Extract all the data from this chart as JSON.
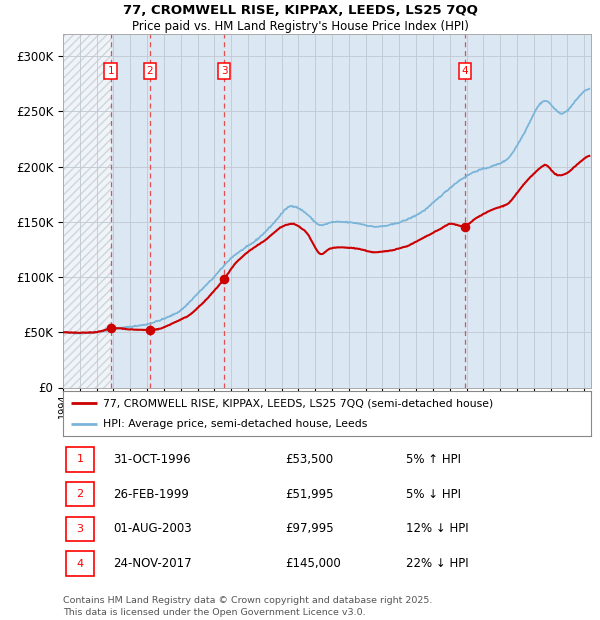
{
  "title1": "77, CROMWELL RISE, KIPPAX, LEEDS, LS25 7QQ",
  "title2": "Price paid vs. HM Land Registry's House Price Index (HPI)",
  "ylim": [
    0,
    320000
  ],
  "yticks": [
    0,
    50000,
    100000,
    150000,
    200000,
    250000,
    300000
  ],
  "hpi_color": "#7ab4d8",
  "price_color": "#cc0000",
  "bg_color": "#dbe8f4",
  "grid_color": "#c0c8d0",
  "dashed_color": "#e05050",
  "transaction_years": [
    1996.833,
    1999.167,
    2003.583,
    2017.9
  ],
  "transaction_prices": [
    53500,
    51995,
    97995,
    145000
  ],
  "transaction_labels": [
    "1",
    "2",
    "3",
    "4"
  ],
  "table_entries": [
    {
      "label": "1",
      "date": "31-OCT-1996",
      "price": "£53,500",
      "pct": "5% ↑ HPI"
    },
    {
      "label": "2",
      "date": "26-FEB-1999",
      "price": "£51,995",
      "pct": "5% ↓ HPI"
    },
    {
      "label": "3",
      "date": "01-AUG-2003",
      "price": "£97,995",
      "pct": "12% ↓ HPI"
    },
    {
      "label": "4",
      "date": "24-NOV-2017",
      "price": "£145,000",
      "pct": "22% ↓ HPI"
    }
  ],
  "footer": "Contains HM Land Registry data © Crown copyright and database right 2025.\nThis data is licensed under the Open Government Licence v3.0.",
  "legend_line1": "77, CROMWELL RISE, KIPPAX, LEEDS, LS25 7QQ (semi-detached house)",
  "legend_line2": "HPI: Average price, semi-detached house, Leeds",
  "hpi_keypoints_x": [
    1994.0,
    1995.0,
    1996.0,
    1997.0,
    1998.0,
    1999.0,
    2000.0,
    2001.0,
    2002.0,
    2003.0,
    2004.0,
    2005.5,
    2006.5,
    2007.5,
    2008.5,
    2009.3,
    2009.8,
    2010.5,
    2011.5,
    2012.5,
    2013.5,
    2014.5,
    2015.5,
    2016.5,
    2017.5,
    2018.5,
    2019.5,
    2020.5,
    2021.5,
    2022.3,
    2022.8,
    2023.3,
    2023.8,
    2024.3,
    2024.8,
    2025.2
  ],
  "hpi_keypoints_y": [
    50000,
    49000,
    50000,
    53000,
    55000,
    57000,
    62000,
    69000,
    85000,
    100000,
    118000,
    133000,
    148000,
    167000,
    158000,
    144000,
    150000,
    150000,
    149000,
    145000,
    147000,
    152000,
    160000,
    174000,
    187000,
    196000,
    200000,
    206000,
    232000,
    258000,
    263000,
    249000,
    246000,
    256000,
    266000,
    272000
  ],
  "price_keypoints_x": [
    1994.0,
    1995.0,
    1996.0,
    1996.833,
    1997.2,
    1998.0,
    1999.167,
    1999.8,
    2000.5,
    2001.5,
    2002.5,
    2003.583,
    2004.2,
    2005.0,
    2006.0,
    2007.0,
    2007.7,
    2008.5,
    2009.3,
    2009.8,
    2010.5,
    2011.5,
    2012.5,
    2013.5,
    2014.5,
    2015.5,
    2016.5,
    2017.0,
    2017.9,
    2018.5,
    2019.5,
    2020.5,
    2021.5,
    2022.3,
    2022.8,
    2023.0,
    2023.5,
    2024.0,
    2024.5,
    2025.2
  ],
  "price_keypoints_y": [
    50000,
    49500,
    50000,
    53500,
    54000,
    52500,
    51995,
    53000,
    58000,
    65000,
    79000,
    97995,
    112000,
    123000,
    133000,
    146000,
    149000,
    141000,
    118000,
    126000,
    127000,
    126000,
    122000,
    124000,
    128000,
    136000,
    144000,
    149000,
    145000,
    153000,
    161000,
    166000,
    186000,
    198000,
    204000,
    196000,
    191000,
    194000,
    201000,
    210000
  ]
}
